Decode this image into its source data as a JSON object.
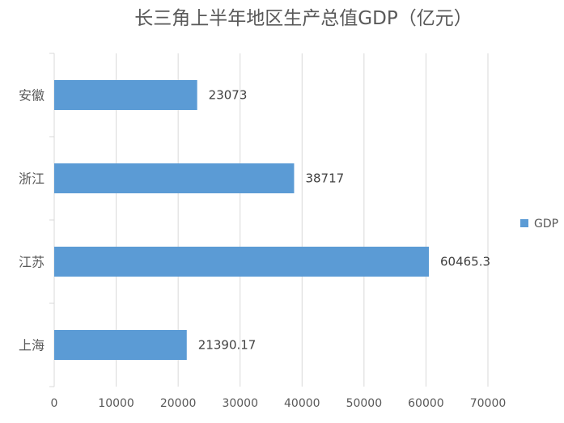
{
  "chart_data": {
    "type": "bar",
    "orientation": "horizontal",
    "title": "长三角上半年地区生产总值GDP（亿元）",
    "categories": [
      "安徽",
      "浙江",
      "江苏",
      "上海"
    ],
    "series": [
      {
        "name": "GDP",
        "values": [
          23073,
          38717,
          60465.3,
          21390.17
        ],
        "color": "#5b9bd5"
      }
    ],
    "value_labels": [
      "23073",
      "38717",
      "60465.3",
      "21390.17"
    ],
    "xlim": [
      0,
      70000
    ],
    "xticks": [
      0,
      10000,
      20000,
      30000,
      40000,
      50000,
      60000,
      70000
    ],
    "grid": true,
    "legend_position": "right",
    "colors": {
      "bar": "#5b9bd5",
      "grid": "#d9d9d9",
      "text": "#595959"
    }
  }
}
